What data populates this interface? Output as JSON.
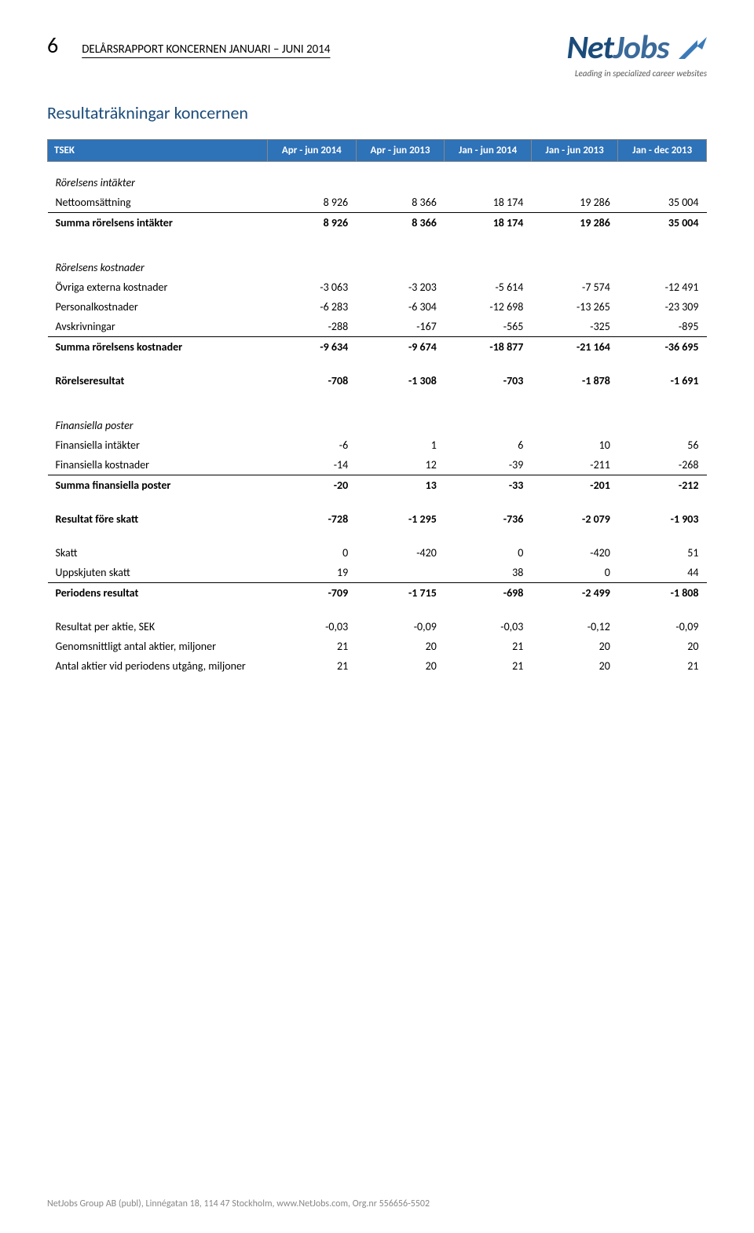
{
  "page_number": "6",
  "doc_title": "DELÅRSRAPPORT KONCERNEN JANUARI – JUNI 2014",
  "logo": {
    "text_a": "Net",
    "text_b": "Jobs",
    "tagline": "Leading in specialized career websites"
  },
  "section_title": "Resultaträkningar koncernen",
  "table": {
    "header": {
      "label": "TSEK",
      "cols": [
        "Apr - jun 2014",
        "Apr - jun 2013",
        "Jan - jun 2014",
        "Jan - jun 2013",
        "Jan - dec 2013"
      ]
    },
    "rows": [
      {
        "type": "section",
        "label": "Rörelsens intäkter"
      },
      {
        "type": "data",
        "u": true,
        "label": "Nettoomsättning",
        "v": [
          "8 926",
          "8 366",
          "18 174",
          "19 286",
          "35 004"
        ]
      },
      {
        "type": "data",
        "bold": true,
        "label": "Summa rörelsens intäkter",
        "v": [
          "8 926",
          "8 366",
          "18 174",
          "19 286",
          "35 004"
        ]
      },
      {
        "type": "spacer"
      },
      {
        "type": "section",
        "label": "Rörelsens kostnader"
      },
      {
        "type": "data",
        "label": "Övriga externa kostnader",
        "v": [
          "-3 063",
          "-3 203",
          "-5 614",
          "-7 574",
          "-12 491"
        ]
      },
      {
        "type": "data",
        "label": "Personalkostnader",
        "v": [
          "-6 283",
          "-6 304",
          "-12 698",
          "-13 265",
          "-23 309"
        ]
      },
      {
        "type": "data",
        "u": true,
        "label": "Avskrivningar",
        "v": [
          "-288",
          "-167",
          "-565",
          "-325",
          "-895"
        ]
      },
      {
        "type": "data",
        "bold": true,
        "label": "Summa rörelsens kostnader",
        "v": [
          "-9 634",
          "-9 674",
          "-18 877",
          "-21 164",
          "-36 695"
        ]
      },
      {
        "type": "spacer"
      },
      {
        "type": "data",
        "bold": true,
        "label": "Rörelseresultat",
        "v": [
          "-708",
          "-1 308",
          "-703",
          "-1 878",
          "-1 691"
        ]
      },
      {
        "type": "spacer"
      },
      {
        "type": "section",
        "label": "Finansiella poster"
      },
      {
        "type": "data",
        "label": "Finansiella intäkter",
        "v": [
          "-6",
          "1",
          "6",
          "10",
          "56"
        ]
      },
      {
        "type": "data",
        "u": true,
        "label": "Finansiella kostnader",
        "v": [
          "-14",
          "12",
          "-39",
          "-211",
          "-268"
        ]
      },
      {
        "type": "data",
        "bold": true,
        "label": "Summa finansiella poster",
        "v": [
          "-20",
          "13",
          "-33",
          "-201",
          "-212"
        ]
      },
      {
        "type": "spacer"
      },
      {
        "type": "data",
        "bold": true,
        "label": "Resultat före skatt",
        "v": [
          "-728",
          "-1 295",
          "-736",
          "-2 079",
          "-1 903"
        ]
      },
      {
        "type": "spacer"
      },
      {
        "type": "data",
        "label": "Skatt",
        "v": [
          "0",
          "-420",
          "0",
          "-420",
          "51"
        ]
      },
      {
        "type": "data",
        "u": true,
        "label": "Uppskjuten skatt",
        "v": [
          "19",
          "",
          "38",
          "0",
          "44"
        ]
      },
      {
        "type": "data",
        "bold": true,
        "label": "Periodens resultat",
        "v": [
          "-709",
          "-1 715",
          "-698",
          "-2 499",
          "-1 808"
        ]
      },
      {
        "type": "spacer"
      },
      {
        "type": "data",
        "label": "Resultat per aktie, SEK",
        "v": [
          "-0,03",
          "-0,09",
          "-0,03",
          "-0,12",
          "-0,09"
        ]
      },
      {
        "type": "data",
        "label": "Genomsnittligt antal aktier, miljoner",
        "v": [
          "21",
          "20",
          "21",
          "20",
          "20"
        ]
      },
      {
        "type": "data",
        "label": "Antal aktier vid periodens utgång, miljoner",
        "v": [
          "21",
          "20",
          "21",
          "20",
          "21"
        ]
      }
    ]
  },
  "footer": "NetJobs Group AB (publ), Linnégatan 18, 114 47 Stockholm, www.NetJobs.com, Org.nr 556656-5502"
}
